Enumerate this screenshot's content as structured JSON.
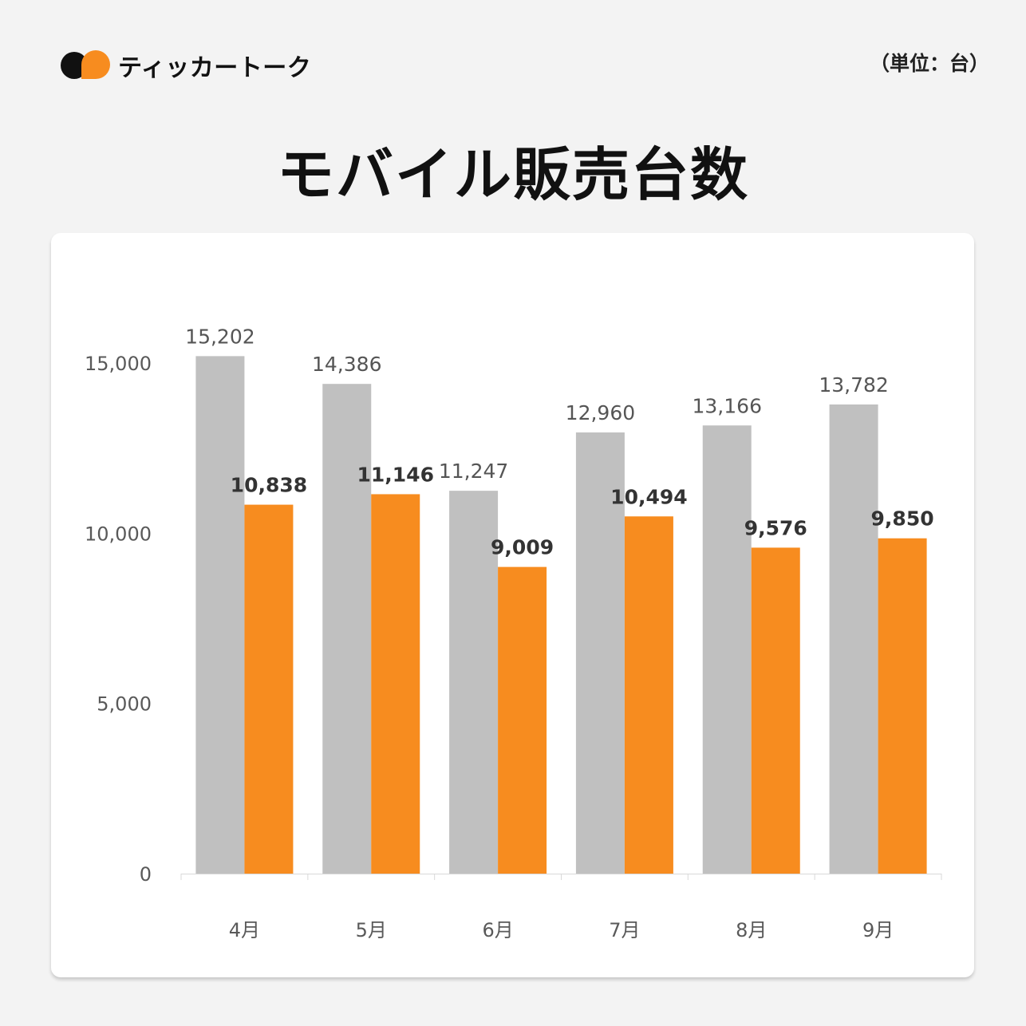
{
  "brand": {
    "name": "ティッカートーク",
    "icon": "speech-bubble-logo-icon"
  },
  "unit_label": "（単位：台）",
  "title": "モバイル販売台数",
  "colors": {
    "accent": "#f78c1f",
    "secondary": "#c0c0c0",
    "dark": "#111111"
  },
  "chart_data": {
    "type": "bar",
    "title": "モバイル販売台数",
    "categories": [
      "4月",
      "5月",
      "6月",
      "7月",
      "8月",
      "9月"
    ],
    "series": [
      {
        "color": "#c0c0c0",
        "values": [
          15202,
          14386,
          11247,
          12960,
          13166,
          13782
        ]
      },
      {
        "color": "#f78c1f",
        "values": [
          10838,
          11146,
          9009,
          10494,
          9576,
          9850
        ]
      }
    ],
    "yticks": [
      0,
      5000,
      10000,
      15000
    ],
    "ylim": [
      0,
      15000
    ],
    "grid": false,
    "legend": "none"
  }
}
